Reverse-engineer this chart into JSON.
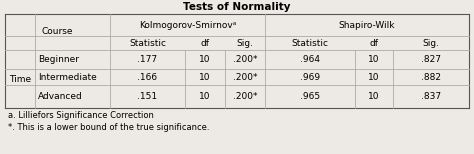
{
  "title": "Tests of Normality",
  "col_group1": "Kolmogorov-Smirnovᵃ",
  "col_group2": "Shapiro-Wilk",
  "sub_cols": [
    "Statistic",
    "df",
    "Sig."
  ],
  "row_label1": "Time",
  "courses": [
    "Beginner",
    "Intermediate",
    "Advanced"
  ],
  "ks_statistic": [
    ".177",
    ".166",
    ".151"
  ],
  "ks_df": [
    "10",
    "10",
    "10"
  ],
  "ks_sig": [
    ".200*",
    ".200*",
    ".200*"
  ],
  "sw_statistic": [
    ".964",
    ".969",
    ".965"
  ],
  "sw_df": [
    "10",
    "10",
    "10"
  ],
  "sw_sig": [
    ".827",
    ".882",
    ".837"
  ],
  "footnote1": "a. Lilliefors Significance Correction",
  "footnote2": "*. This is a lower bound of the true significance.",
  "bg_color": "#ede9e4",
  "title_fontsize": 7.5,
  "cell_fontsize": 6.5,
  "header_fontsize": 6.5
}
